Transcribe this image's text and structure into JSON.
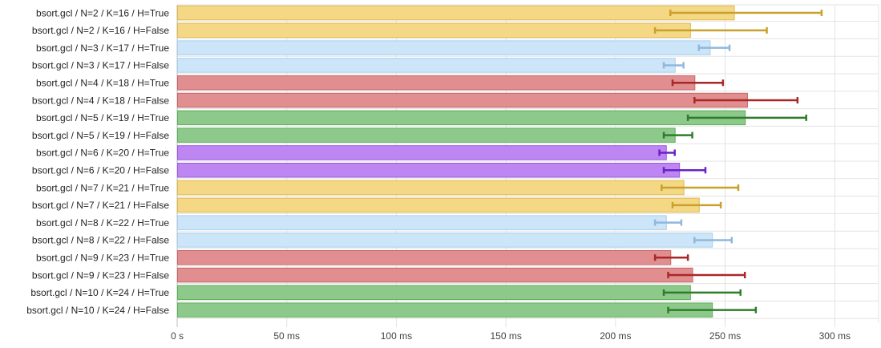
{
  "chart_data": {
    "type": "bar",
    "orientation": "horizontal",
    "categories": [
      "bsort.gcl / N=2 / K=16 / H=True",
      "bsort.gcl / N=2 / K=16 / H=False",
      "bsort.gcl / N=3 / K=17 / H=True",
      "bsort.gcl / N=3 / K=17 / H=False",
      "bsort.gcl / N=4 / K=18 / H=True",
      "bsort.gcl / N=4 / K=18 / H=False",
      "bsort.gcl / N=5 / K=19 / H=True",
      "bsort.gcl / N=5 / K=19 / H=False",
      "bsort.gcl / N=6 / K=20 / H=True",
      "bsort.gcl / N=6 / K=20 / H=False",
      "bsort.gcl / N=7 / K=21 / H=True",
      "bsort.gcl / N=7 / K=21 / H=False",
      "bsort.gcl / N=8 / K=22 / H=True",
      "bsort.gcl / N=8 / K=22 / H=False",
      "bsort.gcl / N=9 / K=23 / H=True",
      "bsort.gcl / N=9 / K=23 / H=False",
      "bsort.gcl / N=10 / K=24 / H=True",
      "bsort.gcl / N=10 / K=24 / H=False"
    ],
    "values": [
      254,
      234,
      243,
      227,
      236,
      260,
      259,
      227,
      223,
      229,
      231,
      238,
      223,
      244,
      225,
      235,
      234,
      244
    ],
    "error_low": [
      225,
      218,
      238,
      222,
      226,
      236,
      233,
      222,
      220,
      222,
      221,
      226,
      218,
      236,
      218,
      224,
      222,
      224
    ],
    "error_high": [
      294,
      269,
      252,
      231,
      249,
      283,
      287,
      235,
      227,
      241,
      256,
      248,
      230,
      253,
      233,
      259,
      257,
      264
    ],
    "colors": [
      {
        "fill": "#f5d886",
        "stroke": "#e0b946",
        "error": "#c9a02c"
      },
      {
        "fill": "#f5d886",
        "stroke": "#e0b946",
        "error": "#c9a02c"
      },
      {
        "fill": "#cce5f8",
        "stroke": "#a9cfee",
        "error": "#8fb8dd"
      },
      {
        "fill": "#cce5f8",
        "stroke": "#a9cfee",
        "error": "#8fb8dd"
      },
      {
        "fill": "#e08e8f",
        "stroke": "#c96465",
        "error": "#a82828"
      },
      {
        "fill": "#e08e8f",
        "stroke": "#c96465",
        "error": "#a82828"
      },
      {
        "fill": "#8dc98a",
        "stroke": "#5fae5b",
        "error": "#2e7d2a"
      },
      {
        "fill": "#8dc98a",
        "stroke": "#5fae5b",
        "error": "#2e7d2a"
      },
      {
        "fill": "#bd86f2",
        "stroke": "#9a5ae0",
        "error": "#6a22c4"
      },
      {
        "fill": "#bd86f2",
        "stroke": "#9a5ae0",
        "error": "#6a22c4"
      },
      {
        "fill": "#f5d886",
        "stroke": "#e0b946",
        "error": "#c9a02c"
      },
      {
        "fill": "#f5d886",
        "stroke": "#e0b946",
        "error": "#c9a02c"
      },
      {
        "fill": "#cce5f8",
        "stroke": "#a9cfee",
        "error": "#8fb8dd"
      },
      {
        "fill": "#cce5f8",
        "stroke": "#a9cfee",
        "error": "#8fb8dd"
      },
      {
        "fill": "#e08e8f",
        "stroke": "#c96465",
        "error": "#a82828"
      },
      {
        "fill": "#e08e8f",
        "stroke": "#c96465",
        "error": "#a82828"
      },
      {
        "fill": "#8dc98a",
        "stroke": "#5fae5b",
        "error": "#2e7d2a"
      },
      {
        "fill": "#8dc98a",
        "stroke": "#5fae5b",
        "error": "#2e7d2a"
      }
    ],
    "x_ticks": [
      {
        "value": 0,
        "label": "0 s"
      },
      {
        "value": 50,
        "label": "50 ms"
      },
      {
        "value": 100,
        "label": "100 ms"
      },
      {
        "value": 150,
        "label": "150 ms"
      },
      {
        "value": 200,
        "label": "200 ms"
      },
      {
        "value": 250,
        "label": "250 ms"
      },
      {
        "value": 300,
        "label": "300 ms"
      }
    ],
    "xlim": [
      0,
      320
    ],
    "unit": "ms",
    "grid": true,
    "title": "",
    "xlabel": "",
    "ylabel": ""
  }
}
